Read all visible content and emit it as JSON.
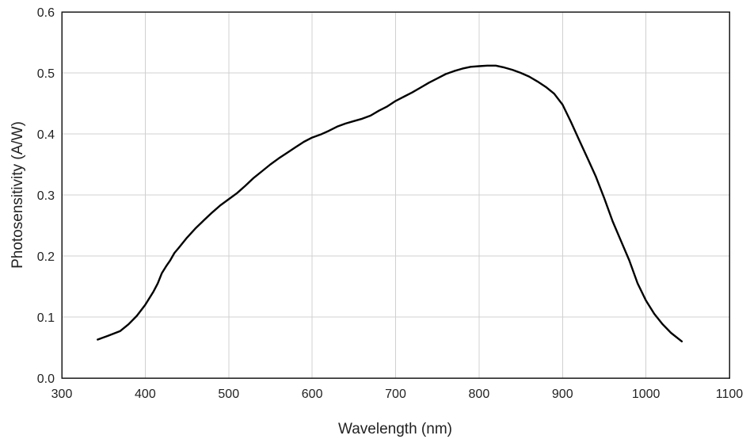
{
  "chart_data": {
    "type": "line",
    "title": "",
    "xlabel": "Wavelength (nm)",
    "ylabel": "Photosensitivity (A/W)",
    "xlim": [
      300,
      1100
    ],
    "ylim": [
      0,
      0.6
    ],
    "x_ticks": [
      300,
      400,
      500,
      600,
      700,
      800,
      900,
      1000,
      1100
    ],
    "x_tick_labels": [
      "300",
      "400",
      "500",
      "600",
      "700",
      "800",
      "900",
      "1000",
      "1100"
    ],
    "y_ticks": [
      0,
      0.1,
      0.2,
      0.3,
      0.4,
      0.5,
      0.6
    ],
    "y_tick_labels": [
      "0.0",
      "0.1",
      "0.2",
      "0.3",
      "0.4",
      "0.5",
      "0.6"
    ],
    "grid": true,
    "legend": false,
    "series": [
      {
        "color": "#000000",
        "x": [
          343,
          355,
          370,
          380,
          390,
          400,
          410,
          415,
          420,
          425,
          430,
          435,
          440,
          450,
          460,
          470,
          480,
          490,
          500,
          510,
          520,
          530,
          540,
          550,
          560,
          570,
          580,
          590,
          600,
          610,
          620,
          630,
          640,
          650,
          660,
          670,
          680,
          690,
          700,
          710,
          720,
          730,
          740,
          750,
          760,
          770,
          780,
          790,
          800,
          810,
          820,
          830,
          840,
          850,
          860,
          870,
          880,
          890,
          900,
          910,
          920,
          930,
          940,
          950,
          960,
          970,
          980,
          990,
          1000,
          1010,
          1020,
          1030,
          1043
        ],
        "y": [
          0.063,
          0.069,
          0.077,
          0.088,
          0.102,
          0.12,
          0.142,
          0.155,
          0.172,
          0.183,
          0.193,
          0.205,
          0.213,
          0.23,
          0.245,
          0.258,
          0.271,
          0.283,
          0.293,
          0.303,
          0.315,
          0.328,
          0.339,
          0.35,
          0.36,
          0.369,
          0.378,
          0.387,
          0.394,
          0.399,
          0.405,
          0.412,
          0.417,
          0.421,
          0.425,
          0.43,
          0.438,
          0.445,
          0.454,
          0.461,
          0.468,
          0.476,
          0.484,
          0.491,
          0.498,
          0.503,
          0.507,
          0.51,
          0.511,
          0.512,
          0.512,
          0.509,
          0.505,
          0.5,
          0.494,
          0.486,
          0.477,
          0.466,
          0.448,
          0.42,
          0.39,
          0.36,
          0.33,
          0.295,
          0.257,
          0.225,
          0.193,
          0.155,
          0.127,
          0.105,
          0.088,
          0.074,
          0.06
        ]
      }
    ]
  }
}
